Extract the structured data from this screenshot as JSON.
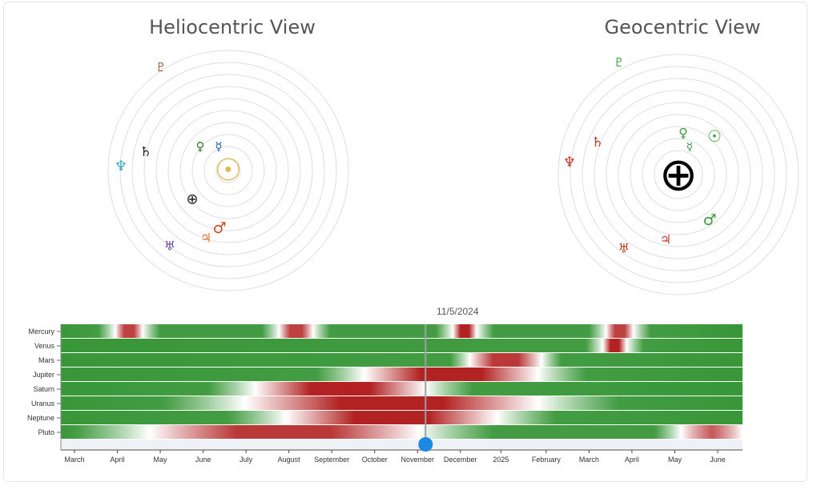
{
  "views": {
    "heliocentric": {
      "title": "Heliocentric View",
      "center": {
        "glyph": "☉",
        "icon": "sun-icon",
        "color": "#e0b85a"
      },
      "bodies": [
        {
          "name": "Pluto",
          "glyph": "♇",
          "color": "#8a5a3c"
        },
        {
          "name": "Saturn",
          "glyph": "♄",
          "color": "#222222"
        },
        {
          "name": "Venus",
          "glyph": "♀",
          "color": "#2e7d32"
        },
        {
          "name": "Mercury",
          "glyph": "☿",
          "color": "#1a5fa8"
        },
        {
          "name": "Neptune",
          "glyph": "♆",
          "color": "#3aa8c2"
        },
        {
          "name": "Earth",
          "glyph": "⊕",
          "color": "#222222"
        },
        {
          "name": "Mars",
          "glyph": "♂",
          "color": "#d04a2a"
        },
        {
          "name": "Jupiter",
          "glyph": "♃",
          "color": "#e07030"
        },
        {
          "name": "Uranus",
          "glyph": "♅",
          "color": "#6b4aa8"
        }
      ]
    },
    "geocentric": {
      "title": "Geocentric View",
      "center": {
        "glyph": "⊕",
        "icon": "earth-icon",
        "color": "#000000"
      },
      "bodies": [
        {
          "name": "Pluto",
          "glyph": "♇",
          "color": "#3d9a3d"
        },
        {
          "name": "Venus",
          "glyph": "♀",
          "color": "#3d9a3d"
        },
        {
          "name": "Sun",
          "glyph": "☉",
          "color": "#3d9a3d"
        },
        {
          "name": "Mercury",
          "glyph": "☿",
          "color": "#3d9a3d"
        },
        {
          "name": "Saturn",
          "glyph": "♄",
          "color": "#c0392b"
        },
        {
          "name": "Neptune",
          "glyph": "♆",
          "color": "#c0392b"
        },
        {
          "name": "Mars",
          "glyph": "♂",
          "color": "#3d9a3d"
        },
        {
          "name": "Jupiter",
          "glyph": "♃",
          "color": "#c0392b"
        },
        {
          "name": "Uranus",
          "glyph": "♅",
          "color": "#c0392b"
        }
      ]
    }
  },
  "timeline": {
    "current_date": "11/5/2024",
    "cursor_fraction": 0.535,
    "planets": [
      "Mercury",
      "Venus",
      "Mars",
      "Jupiter",
      "Saturn",
      "Uranus",
      "Neptune",
      "Pluto"
    ],
    "months": [
      "March",
      "April",
      "May",
      "June",
      "July",
      "August",
      "September",
      "October",
      "November",
      "December",
      "2025",
      "February",
      "March",
      "April",
      "May",
      "June"
    ],
    "colors": {
      "green": "#228b22",
      "white": "#ffffff",
      "red": "#b22222"
    },
    "retrograde_bands": {
      "Mercury": [
        [
          0.08,
          0.12,
          0.86
        ],
        [
          0.32,
          0.37,
          0.86
        ],
        [
          0.575,
          0.61,
          1.0
        ],
        [
          0.8,
          0.84,
          0.86
        ]
      ],
      "Venus": [
        [
          0.795,
          0.83,
          1.0
        ]
      ],
      "Mars": [
        [
          0.6,
          0.705,
          0.9
        ]
      ],
      "Jupiter": [
        [
          0.445,
          0.7,
          1.0
        ]
      ],
      "Saturn": [
        [
          0.285,
          0.535,
          1.0
        ]
      ],
      "Uranus": [
        [
          0.27,
          0.7,
          1.0
        ]
      ],
      "Neptune": [
        [
          0.33,
          0.64,
          1.0
        ]
      ],
      "Pluto": [
        [
          0.13,
          0.525,
          0.9
        ],
        [
          0.91,
          1.05,
          0.75
        ]
      ]
    }
  }
}
